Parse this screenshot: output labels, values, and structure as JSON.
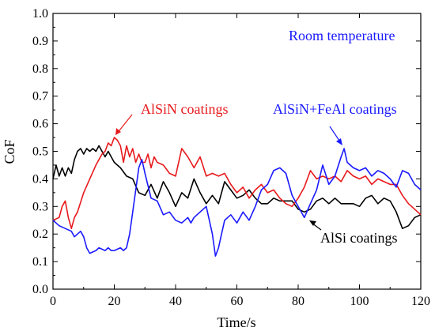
{
  "chart_data": {
    "type": "line",
    "xlabel": "Time/s",
    "ylabel": "CoF",
    "xlim": [
      0,
      120
    ],
    "ylim": [
      0,
      1.0
    ],
    "x_ticks": [
      "0",
      "20",
      "40",
      "60",
      "80",
      "100",
      "120"
    ],
    "y_ticks": [
      "0.0",
      "0.1",
      "0.2",
      "0.3",
      "0.4",
      "0.5",
      "0.6",
      "0.7",
      "0.8",
      "0.9",
      "1.0"
    ],
    "grid": false,
    "annotations": [
      {
        "text": "Room temperature",
        "color": "#1a1aff"
      },
      {
        "text": "AlSiN coatings",
        "color": "#e8191c"
      },
      {
        "text": "AlSiN+FeAl coatings",
        "color": "#1a1aff"
      },
      {
        "text": "AlSi coatings",
        "color": "#000000"
      }
    ],
    "series": [
      {
        "name": "AlSi coatings",
        "color": "#000000",
        "points": [
          [
            0,
            0.4
          ],
          [
            1,
            0.45
          ],
          [
            2,
            0.41
          ],
          [
            3,
            0.44
          ],
          [
            4,
            0.41
          ],
          [
            5,
            0.44
          ],
          [
            6,
            0.42
          ],
          [
            7,
            0.47
          ],
          [
            8,
            0.5
          ],
          [
            9,
            0.51
          ],
          [
            10,
            0.49
          ],
          [
            11,
            0.51
          ],
          [
            12,
            0.5
          ],
          [
            13,
            0.51
          ],
          [
            14,
            0.5
          ],
          [
            15,
            0.52
          ],
          [
            16,
            0.5
          ],
          [
            17,
            0.48
          ],
          [
            18,
            0.5
          ],
          [
            19,
            0.48
          ],
          [
            20,
            0.46
          ],
          [
            22,
            0.44
          ],
          [
            24,
            0.41
          ],
          [
            26,
            0.4
          ],
          [
            28,
            0.35
          ],
          [
            30,
            0.34
          ],
          [
            32,
            0.38
          ],
          [
            34,
            0.33
          ],
          [
            36,
            0.39
          ],
          [
            38,
            0.35
          ],
          [
            40,
            0.3
          ],
          [
            42,
            0.35
          ],
          [
            44,
            0.33
          ],
          [
            46,
            0.4
          ],
          [
            48,
            0.35
          ],
          [
            50,
            0.31
          ],
          [
            52,
            0.34
          ],
          [
            54,
            0.31
          ],
          [
            56,
            0.39
          ],
          [
            58,
            0.36
          ],
          [
            60,
            0.33
          ],
          [
            62,
            0.34
          ],
          [
            64,
            0.36
          ],
          [
            66,
            0.33
          ],
          [
            68,
            0.31
          ],
          [
            70,
            0.31
          ],
          [
            72,
            0.33
          ],
          [
            74,
            0.32
          ],
          [
            76,
            0.32
          ],
          [
            78,
            0.32
          ],
          [
            80,
            0.29
          ],
          [
            82,
            0.28
          ],
          [
            84,
            0.29
          ],
          [
            86,
            0.32
          ],
          [
            88,
            0.33
          ],
          [
            90,
            0.31
          ],
          [
            92,
            0.33
          ],
          [
            94,
            0.31
          ],
          [
            96,
            0.31
          ],
          [
            98,
            0.31
          ],
          [
            100,
            0.3
          ],
          [
            102,
            0.33
          ],
          [
            104,
            0.34
          ],
          [
            106,
            0.31
          ],
          [
            108,
            0.33
          ],
          [
            110,
            0.32
          ],
          [
            112,
            0.28
          ],
          [
            114,
            0.22
          ],
          [
            116,
            0.23
          ],
          [
            118,
            0.26
          ],
          [
            120,
            0.27
          ]
        ]
      },
      {
        "name": "AlSiN coatings",
        "color": "#e8191c",
        "points": [
          [
            0,
            0.25
          ],
          [
            2,
            0.26
          ],
          [
            3,
            0.3
          ],
          [
            4,
            0.32
          ],
          [
            5,
            0.26
          ],
          [
            6,
            0.22
          ],
          [
            7,
            0.26
          ],
          [
            8,
            0.28
          ],
          [
            10,
            0.35
          ],
          [
            12,
            0.4
          ],
          [
            14,
            0.45
          ],
          [
            16,
            0.49
          ],
          [
            17,
            0.5
          ],
          [
            18,
            0.53
          ],
          [
            19,
            0.52
          ],
          [
            20,
            0.55
          ],
          [
            21,
            0.54
          ],
          [
            22,
            0.52
          ],
          [
            23,
            0.46
          ],
          [
            24,
            0.52
          ],
          [
            25,
            0.48
          ],
          [
            26,
            0.51
          ],
          [
            27,
            0.46
          ],
          [
            28,
            0.49
          ],
          [
            29,
            0.46
          ],
          [
            30,
            0.46
          ],
          [
            31,
            0.49
          ],
          [
            32,
            0.44
          ],
          [
            33,
            0.48
          ],
          [
            34,
            0.46
          ],
          [
            36,
            0.45
          ],
          [
            38,
            0.42
          ],
          [
            40,
            0.41
          ],
          [
            42,
            0.51
          ],
          [
            44,
            0.48
          ],
          [
            46,
            0.44
          ],
          [
            48,
            0.48
          ],
          [
            50,
            0.41
          ],
          [
            52,
            0.42
          ],
          [
            54,
            0.41
          ],
          [
            56,
            0.42
          ],
          [
            58,
            0.38
          ],
          [
            60,
            0.35
          ],
          [
            62,
            0.37
          ],
          [
            64,
            0.33
          ],
          [
            66,
            0.36
          ],
          [
            68,
            0.38
          ],
          [
            70,
            0.35
          ],
          [
            72,
            0.36
          ],
          [
            74,
            0.33
          ],
          [
            76,
            0.31
          ],
          [
            78,
            0.3
          ],
          [
            80,
            0.33
          ],
          [
            82,
            0.37
          ],
          [
            84,
            0.43
          ],
          [
            86,
            0.4
          ],
          [
            88,
            0.41
          ],
          [
            90,
            0.4
          ],
          [
            92,
            0.41
          ],
          [
            94,
            0.39
          ],
          [
            96,
            0.43
          ],
          [
            98,
            0.41
          ],
          [
            100,
            0.4
          ],
          [
            102,
            0.41
          ],
          [
            104,
            0.38
          ],
          [
            106,
            0.4
          ],
          [
            108,
            0.39
          ],
          [
            110,
            0.38
          ],
          [
            112,
            0.38
          ],
          [
            114,
            0.34
          ],
          [
            116,
            0.31
          ],
          [
            118,
            0.29
          ],
          [
            120,
            0.27
          ]
        ]
      },
      {
        "name": "AlSiN+FeAl coatings",
        "color": "#1a1aff",
        "points": [
          [
            0,
            0.25
          ],
          [
            2,
            0.23
          ],
          [
            4,
            0.22
          ],
          [
            6,
            0.21
          ],
          [
            7,
            0.19
          ],
          [
            8,
            0.2
          ],
          [
            9,
            0.21
          ],
          [
            10,
            0.19
          ],
          [
            11,
            0.15
          ],
          [
            12,
            0.13
          ],
          [
            14,
            0.14
          ],
          [
            15,
            0.15
          ],
          [
            17,
            0.14
          ],
          [
            18,
            0.15
          ],
          [
            19,
            0.14
          ],
          [
            20,
            0.14
          ],
          [
            22,
            0.15
          ],
          [
            23,
            0.14
          ],
          [
            24,
            0.15
          ],
          [
            25,
            0.2
          ],
          [
            26,
            0.28
          ],
          [
            28,
            0.44
          ],
          [
            29,
            0.47
          ],
          [
            30,
            0.42
          ],
          [
            32,
            0.33
          ],
          [
            34,
            0.32
          ],
          [
            36,
            0.27
          ],
          [
            38,
            0.28
          ],
          [
            40,
            0.25
          ],
          [
            42,
            0.24
          ],
          [
            43,
            0.25
          ],
          [
            44,
            0.26
          ],
          [
            45,
            0.24
          ],
          [
            46,
            0.26
          ],
          [
            48,
            0.28
          ],
          [
            50,
            0.3
          ],
          [
            52,
            0.2
          ],
          [
            53,
            0.12
          ],
          [
            54,
            0.15
          ],
          [
            55,
            0.2
          ],
          [
            56,
            0.25
          ],
          [
            58,
            0.27
          ],
          [
            60,
            0.24
          ],
          [
            62,
            0.28
          ],
          [
            64,
            0.25
          ],
          [
            66,
            0.3
          ],
          [
            68,
            0.36
          ],
          [
            70,
            0.38
          ],
          [
            72,
            0.43
          ],
          [
            74,
            0.44
          ],
          [
            76,
            0.42
          ],
          [
            78,
            0.34
          ],
          [
            80,
            0.3
          ],
          [
            82,
            0.26
          ],
          [
            84,
            0.31
          ],
          [
            86,
            0.36
          ],
          [
            88,
            0.45
          ],
          [
            90,
            0.38
          ],
          [
            92,
            0.41
          ],
          [
            94,
            0.48
          ],
          [
            95,
            0.51
          ],
          [
            96,
            0.46
          ],
          [
            98,
            0.44
          ],
          [
            100,
            0.43
          ],
          [
            102,
            0.44
          ],
          [
            104,
            0.41
          ],
          [
            106,
            0.43
          ],
          [
            108,
            0.42
          ],
          [
            110,
            0.4
          ],
          [
            112,
            0.37
          ],
          [
            114,
            0.43
          ],
          [
            116,
            0.42
          ],
          [
            118,
            0.38
          ],
          [
            120,
            0.36
          ]
        ]
      }
    ]
  }
}
